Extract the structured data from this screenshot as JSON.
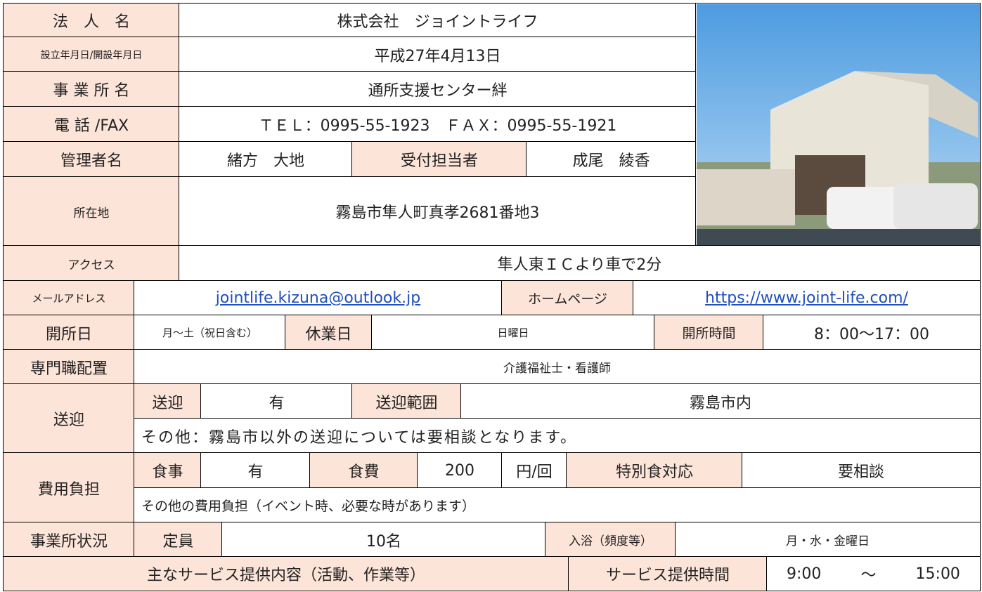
{
  "corporation": {
    "label": "法　人　名",
    "value": "株式会社　ジョイントライフ"
  },
  "established": {
    "label": "設立年月日/開設年月日",
    "value": "平成27年4月13日"
  },
  "office": {
    "label": "事 業 所 名",
    "value": "通所支援センター絆"
  },
  "phone": {
    "label": "電 話 /FAX",
    "value": "ＴＥＬ：0995-55-1923　ＦＡＸ：0995-55-1921"
  },
  "manager": {
    "label": "管理者名",
    "value": "緒方　大地",
    "reception_label": "受付担当者",
    "reception": "成尾　綾香"
  },
  "address": {
    "label": "所在地",
    "value": "霧島市隼人町真孝2681番地3"
  },
  "access": {
    "label": "アクセス",
    "value": "隼人東ＩＣより車で2分"
  },
  "contact": {
    "mail_label": "メールアドレス",
    "mail": "jointlife.kizuna@outlook.jp",
    "homepage_label": "ホームページ",
    "homepage": "https://www.joint-life.com/"
  },
  "open": {
    "label": "開所日",
    "days": "月～土（祝日含む）",
    "closed_label": "休業日",
    "closed": "日曜日",
    "hours_label": "開所時間",
    "hours": "8：00～17：00"
  },
  "staff": {
    "label": "専門職配置",
    "value": "介護福祉士・看護師"
  },
  "transport": {
    "label": "送迎",
    "sub_label": "送迎",
    "value": "有",
    "range_label": "送迎範囲",
    "range": "霧島市内",
    "note": "その他：霧島市以外の送迎については要相談となります。"
  },
  "cost": {
    "label": "費用負担",
    "meal_label": "食事",
    "meal": "有",
    "fee_label": "食費",
    "fee": "200",
    "unit": "円/回",
    "special_label": "特別食対応",
    "special": "要相談",
    "note": "その他の費用負担（イベント時、必要な時があります）"
  },
  "status": {
    "label": "事業所状況",
    "capacity_label": "定員",
    "capacity": "10名",
    "bath_label": "入浴（頻度等）",
    "bath": "月・水・金曜日"
  },
  "service": {
    "label": "主なサービス提供内容（活動、作業等）",
    "time_label": "サービス提供時間",
    "start": "9:00",
    "sep": "～",
    "end": "15:00"
  }
}
